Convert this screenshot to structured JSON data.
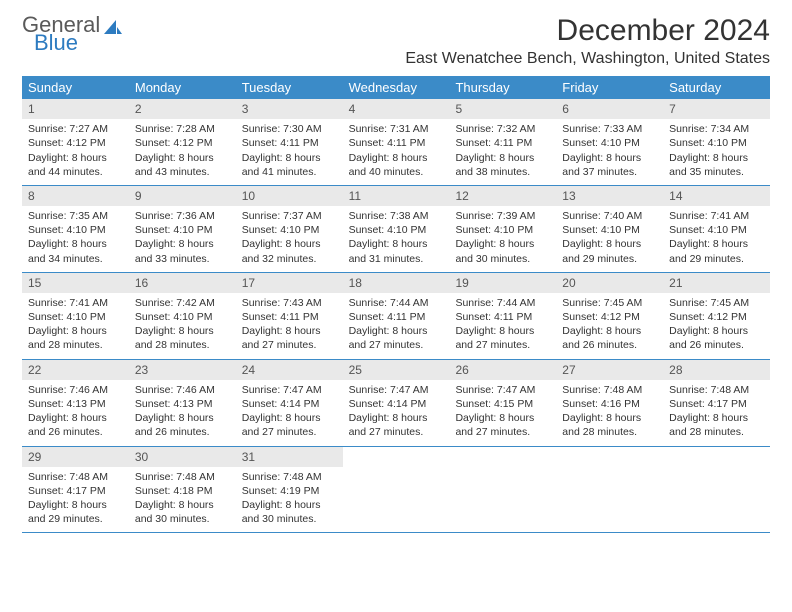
{
  "logo": {
    "text1": "General",
    "text2": "Blue"
  },
  "title": "December 2024",
  "location": "East Wenatchee Bench, Washington, United States",
  "colors": {
    "header_bar": "#3b8bc8",
    "daynum_bg": "#e9e9e9",
    "logo_gray": "#5a5a5a",
    "logo_blue": "#2d7bc0",
    "text": "#333333",
    "week_border": "#3b8bc8"
  },
  "layout": {
    "weekday_fontsize": 13,
    "daynum_fontsize": 12,
    "body_fontsize": 10.5,
    "title_fontsize": 30,
    "location_fontsize": 16
  },
  "weekdays": [
    "Sunday",
    "Monday",
    "Tuesday",
    "Wednesday",
    "Thursday",
    "Friday",
    "Saturday"
  ],
  "weeks": [
    [
      {
        "n": "1",
        "sunrise": "7:27 AM",
        "sunset": "4:12 PM",
        "daylight": "8 hours and 44 minutes."
      },
      {
        "n": "2",
        "sunrise": "7:28 AM",
        "sunset": "4:12 PM",
        "daylight": "8 hours and 43 minutes."
      },
      {
        "n": "3",
        "sunrise": "7:30 AM",
        "sunset": "4:11 PM",
        "daylight": "8 hours and 41 minutes."
      },
      {
        "n": "4",
        "sunrise": "7:31 AM",
        "sunset": "4:11 PM",
        "daylight": "8 hours and 40 minutes."
      },
      {
        "n": "5",
        "sunrise": "7:32 AM",
        "sunset": "4:11 PM",
        "daylight": "8 hours and 38 minutes."
      },
      {
        "n": "6",
        "sunrise": "7:33 AM",
        "sunset": "4:10 PM",
        "daylight": "8 hours and 37 minutes."
      },
      {
        "n": "7",
        "sunrise": "7:34 AM",
        "sunset": "4:10 PM",
        "daylight": "8 hours and 35 minutes."
      }
    ],
    [
      {
        "n": "8",
        "sunrise": "7:35 AM",
        "sunset": "4:10 PM",
        "daylight": "8 hours and 34 minutes."
      },
      {
        "n": "9",
        "sunrise": "7:36 AM",
        "sunset": "4:10 PM",
        "daylight": "8 hours and 33 minutes."
      },
      {
        "n": "10",
        "sunrise": "7:37 AM",
        "sunset": "4:10 PM",
        "daylight": "8 hours and 32 minutes."
      },
      {
        "n": "11",
        "sunrise": "7:38 AM",
        "sunset": "4:10 PM",
        "daylight": "8 hours and 31 minutes."
      },
      {
        "n": "12",
        "sunrise": "7:39 AM",
        "sunset": "4:10 PM",
        "daylight": "8 hours and 30 minutes."
      },
      {
        "n": "13",
        "sunrise": "7:40 AM",
        "sunset": "4:10 PM",
        "daylight": "8 hours and 29 minutes."
      },
      {
        "n": "14",
        "sunrise": "7:41 AM",
        "sunset": "4:10 PM",
        "daylight": "8 hours and 29 minutes."
      }
    ],
    [
      {
        "n": "15",
        "sunrise": "7:41 AM",
        "sunset": "4:10 PM",
        "daylight": "8 hours and 28 minutes."
      },
      {
        "n": "16",
        "sunrise": "7:42 AM",
        "sunset": "4:10 PM",
        "daylight": "8 hours and 28 minutes."
      },
      {
        "n": "17",
        "sunrise": "7:43 AM",
        "sunset": "4:11 PM",
        "daylight": "8 hours and 27 minutes."
      },
      {
        "n": "18",
        "sunrise": "7:44 AM",
        "sunset": "4:11 PM",
        "daylight": "8 hours and 27 minutes."
      },
      {
        "n": "19",
        "sunrise": "7:44 AM",
        "sunset": "4:11 PM",
        "daylight": "8 hours and 27 minutes."
      },
      {
        "n": "20",
        "sunrise": "7:45 AM",
        "sunset": "4:12 PM",
        "daylight": "8 hours and 26 minutes."
      },
      {
        "n": "21",
        "sunrise": "7:45 AM",
        "sunset": "4:12 PM",
        "daylight": "8 hours and 26 minutes."
      }
    ],
    [
      {
        "n": "22",
        "sunrise": "7:46 AM",
        "sunset": "4:13 PM",
        "daylight": "8 hours and 26 minutes."
      },
      {
        "n": "23",
        "sunrise": "7:46 AM",
        "sunset": "4:13 PM",
        "daylight": "8 hours and 26 minutes."
      },
      {
        "n": "24",
        "sunrise": "7:47 AM",
        "sunset": "4:14 PM",
        "daylight": "8 hours and 27 minutes."
      },
      {
        "n": "25",
        "sunrise": "7:47 AM",
        "sunset": "4:14 PM",
        "daylight": "8 hours and 27 minutes."
      },
      {
        "n": "26",
        "sunrise": "7:47 AM",
        "sunset": "4:15 PM",
        "daylight": "8 hours and 27 minutes."
      },
      {
        "n": "27",
        "sunrise": "7:48 AM",
        "sunset": "4:16 PM",
        "daylight": "8 hours and 28 minutes."
      },
      {
        "n": "28",
        "sunrise": "7:48 AM",
        "sunset": "4:17 PM",
        "daylight": "8 hours and 28 minutes."
      }
    ],
    [
      {
        "n": "29",
        "sunrise": "7:48 AM",
        "sunset": "4:17 PM",
        "daylight": "8 hours and 29 minutes."
      },
      {
        "n": "30",
        "sunrise": "7:48 AM",
        "sunset": "4:18 PM",
        "daylight": "8 hours and 30 minutes."
      },
      {
        "n": "31",
        "sunrise": "7:48 AM",
        "sunset": "4:19 PM",
        "daylight": "8 hours and 30 minutes."
      },
      null,
      null,
      null,
      null
    ]
  ],
  "labels": {
    "sunrise": "Sunrise: ",
    "sunset": "Sunset: ",
    "daylight": "Daylight: "
  }
}
